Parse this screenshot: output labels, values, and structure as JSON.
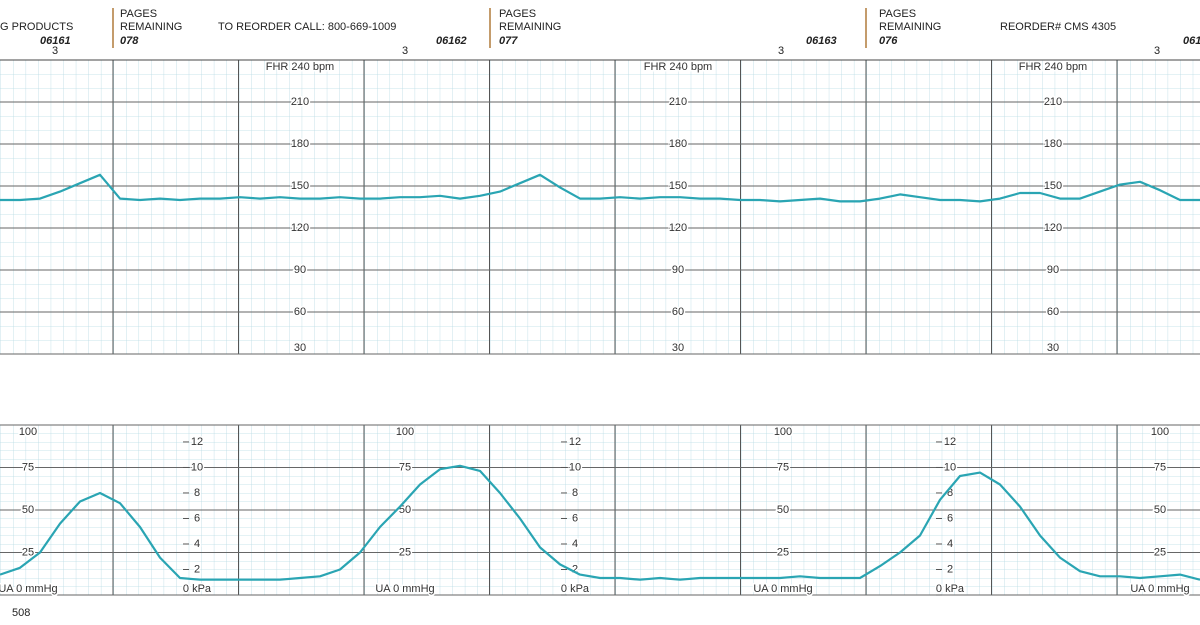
{
  "header": {
    "brand": "G PRODUCTS",
    "phone": "TO REORDER CALL: 800-669-1009",
    "reorder": "REORDER# CMS 4305",
    "pages": "PAGES",
    "remaining": "REMAINING",
    "page_numbers": [
      "06161",
      "06162",
      "06163",
      "061"
    ],
    "pages_remaining": [
      "078",
      "077",
      "076"
    ],
    "marker": "3"
  },
  "footer": {
    "code": "508"
  },
  "chart_data": [
    {
      "type": "line",
      "ylim": [
        30,
        240
      ],
      "yticks": [
        30,
        60,
        90,
        120,
        150,
        180,
        210,
        {
          "value": 240,
          "label": "FHR 240 bpm"
        }
      ],
      "series": [
        {
          "color": "#2aa5b3",
          "values": [
            140,
            140,
            141,
            146,
            152,
            158,
            141,
            140,
            141,
            140,
            141,
            141,
            142,
            141,
            142,
            141,
            141,
            142,
            141,
            141,
            142,
            142,
            143,
            141,
            143,
            146,
            152,
            158,
            149,
            141,
            141,
            142,
            141,
            142,
            142,
            141,
            141,
            140,
            140,
            139,
            140,
            141,
            139,
            139,
            141,
            144,
            142,
            140,
            140,
            139,
            141,
            145,
            145,
            141,
            141,
            146,
            151,
            153,
            147,
            140,
            140
          ]
        }
      ]
    },
    {
      "type": "line",
      "ylim": [
        0,
        100
      ],
      "y2lim": [
        0,
        13.33
      ],
      "yticks": [
        {
          "value": 0,
          "label": "UA 0 mmHg"
        },
        25,
        50,
        75,
        100
      ],
      "y2ticks": [
        {
          "value": 0,
          "label": "0 kPa"
        },
        2,
        4,
        6,
        8,
        10,
        12
      ],
      "series": [
        {
          "color": "#2aa5b3",
          "values": [
            12,
            16,
            25,
            42,
            55,
            60,
            54,
            40,
            22,
            10,
            9,
            9,
            9,
            9,
            9,
            10,
            11,
            15,
            25,
            40,
            52,
            65,
            74,
            76,
            73,
            60,
            45,
            28,
            18,
            12,
            10,
            10,
            9,
            10,
            9,
            10,
            10,
            10,
            10,
            10,
            11,
            10,
            10,
            10,
            17,
            25,
            35,
            56,
            70,
            72,
            65,
            52,
            35,
            22,
            14,
            11,
            11,
            10,
            11,
            12,
            9
          ]
        }
      ]
    }
  ]
}
